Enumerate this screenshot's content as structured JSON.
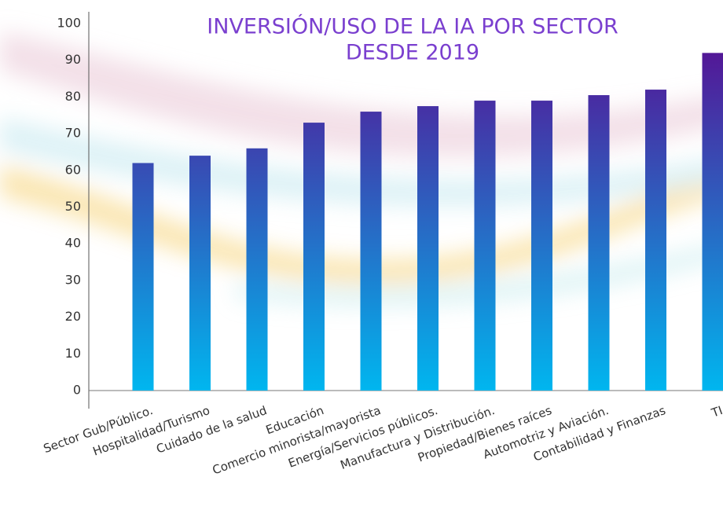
{
  "chart_data": {
    "type": "bar",
    "title": [
      "INVERSIÓN/USO DE LA IA POR SECTOR",
      "DESDE 2019"
    ],
    "categories": [
      "Sector Gub/Público.",
      "Hospitalidad/Turismo",
      "Cuidado de la salud",
      "Educación",
      "Comercio minorista/mayorista",
      "Energía/Servicios públicos.",
      "Manufactura y Distribución.",
      "Propiedad/Bienes raíces",
      "Automotriz y Aviación.",
      "Contabilidad y Finanzas",
      "TI"
    ],
    "values": [
      62,
      64,
      66,
      73,
      76,
      77.5,
      79,
      79,
      80.5,
      82,
      92
    ],
    "color": [
      "#5a0a8f",
      "#00b6ef"
    ],
    "ylim": [
      0,
      100
    ],
    "yticks": [
      0,
      10,
      20,
      30,
      40,
      50,
      60,
      70,
      80,
      90,
      100
    ],
    "grid": false
  }
}
